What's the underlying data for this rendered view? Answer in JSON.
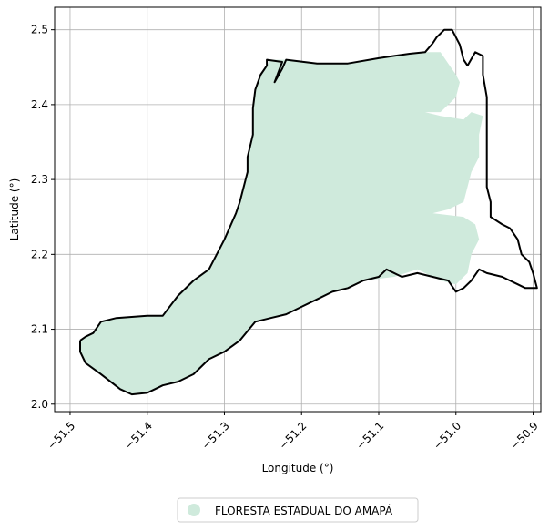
{
  "map": {
    "xlabel": "Longitude (°)",
    "ylabel": "Latitude (°)",
    "xlim": [
      -51.52,
      -50.89
    ],
    "ylim": [
      1.99,
      2.53
    ],
    "grid": true,
    "x_ticks": [
      {
        "value": -51.5,
        "label": "−51.5"
      },
      {
        "value": -51.4,
        "label": "−51.4"
      },
      {
        "value": -51.3,
        "label": "−51.3"
      },
      {
        "value": -51.2,
        "label": "−51.2"
      },
      {
        "value": -51.1,
        "label": "−51.1"
      },
      {
        "value": -51.0,
        "label": "−51.0"
      },
      {
        "value": -50.9,
        "label": "−50.9"
      }
    ],
    "y_ticks": [
      {
        "value": 2.0,
        "label": "2.0"
      },
      {
        "value": 2.1,
        "label": "2.1"
      },
      {
        "value": 2.2,
        "label": "2.2"
      },
      {
        "value": 2.3,
        "label": "2.3"
      },
      {
        "value": 2.4,
        "label": "2.4"
      },
      {
        "value": 2.5,
        "label": "2.5"
      }
    ],
    "fill_color": "#cfeadc",
    "outline_color": "#000000",
    "legend": {
      "placement": "bottom-center",
      "entries": [
        {
          "label": "FLORESTA ESTADUAL DO AMAPÁ",
          "color": "#cfeadc"
        }
      ]
    },
    "region_fill_lonlat": [
      [
        -51.487,
        2.085
      ],
      [
        -51.48,
        2.09
      ],
      [
        -51.47,
        2.095
      ],
      [
        -51.46,
        2.11
      ],
      [
        -51.44,
        2.115
      ],
      [
        -51.4,
        2.118
      ],
      [
        -51.38,
        2.118
      ],
      [
        -51.36,
        2.145
      ],
      [
        -51.34,
        2.165
      ],
      [
        -51.32,
        2.18
      ],
      [
        -51.3,
        2.22
      ],
      [
        -51.285,
        2.255
      ],
      [
        -51.28,
        2.27
      ],
      [
        -51.27,
        2.31
      ],
      [
        -51.27,
        2.33
      ],
      [
        -51.263,
        2.36
      ],
      [
        -51.263,
        2.395
      ],
      [
        -51.26,
        2.42
      ],
      [
        -51.253,
        2.44
      ],
      [
        -51.24,
        2.46
      ],
      [
        -51.22,
        2.46
      ],
      [
        -51.18,
        2.455
      ],
      [
        -51.14,
        2.455
      ],
      [
        -51.1,
        2.462
      ],
      [
        -51.08,
        2.465
      ],
      [
        -51.06,
        2.468
      ],
      [
        -51.04,
        2.47
      ],
      [
        -51.02,
        2.47
      ],
      [
        -51.01,
        2.455
      ],
      [
        -51.0,
        2.44
      ],
      [
        -50.995,
        2.43
      ],
      [
        -51.0,
        2.41
      ],
      [
        -51.02,
        2.39
      ],
      [
        -51.04,
        2.39
      ],
      [
        -51.02,
        2.385
      ],
      [
        -50.99,
        2.38
      ],
      [
        -50.98,
        2.39
      ],
      [
        -50.965,
        2.385
      ],
      [
        -50.97,
        2.36
      ],
      [
        -50.97,
        2.33
      ],
      [
        -50.98,
        2.31
      ],
      [
        -50.985,
        2.29
      ],
      [
        -50.99,
        2.27
      ],
      [
        -51.01,
        2.26
      ],
      [
        -51.03,
        2.255
      ],
      [
        -50.99,
        2.25
      ],
      [
        -50.975,
        2.24
      ],
      [
        -50.97,
        2.22
      ],
      [
        -50.98,
        2.2
      ],
      [
        -50.985,
        2.175
      ],
      [
        -51.0,
        2.16
      ],
      [
        -51.02,
        2.165
      ],
      [
        -51.05,
        2.18
      ],
      [
        -51.08,
        2.17
      ],
      [
        -51.12,
        2.165
      ],
      [
        -51.14,
        2.155
      ],
      [
        -51.16,
        2.15
      ],
      [
        -51.18,
        2.14
      ],
      [
        -51.2,
        2.13
      ],
      [
        -51.22,
        2.12
      ],
      [
        -51.24,
        2.115
      ],
      [
        -51.26,
        2.11
      ],
      [
        -51.28,
        2.085
      ],
      [
        -51.3,
        2.07
      ],
      [
        -51.32,
        2.06
      ],
      [
        -51.34,
        2.04
      ],
      [
        -51.36,
        2.03
      ],
      [
        -51.38,
        2.025
      ],
      [
        -51.39,
        2.02
      ],
      [
        -51.4,
        2.015
      ],
      [
        -51.42,
        2.013
      ],
      [
        -51.435,
        2.02
      ],
      [
        -51.46,
        2.04
      ],
      [
        -51.48,
        2.055
      ],
      [
        -51.487,
        2.07
      ]
    ],
    "region_outline_lonlat": [
      [
        -51.487,
        2.085
      ],
      [
        -51.48,
        2.09
      ],
      [
        -51.47,
        2.095
      ],
      [
        -51.46,
        2.11
      ],
      [
        -51.44,
        2.115
      ],
      [
        -51.4,
        2.118
      ],
      [
        -51.38,
        2.118
      ],
      [
        -51.36,
        2.145
      ],
      [
        -51.34,
        2.165
      ],
      [
        -51.32,
        2.18
      ],
      [
        -51.3,
        2.22
      ],
      [
        -51.285,
        2.255
      ],
      [
        -51.28,
        2.27
      ],
      [
        -51.27,
        2.31
      ],
      [
        -51.27,
        2.33
      ],
      [
        -51.263,
        2.36
      ],
      [
        -51.263,
        2.395
      ],
      [
        -51.26,
        2.42
      ],
      [
        -51.253,
        2.44
      ],
      [
        -51.245,
        2.452
      ],
      [
        -51.245,
        2.46
      ],
      [
        -51.225,
        2.457
      ],
      [
        -51.235,
        2.43
      ],
      [
        -51.225,
        2.448
      ],
      [
        -51.22,
        2.46
      ],
      [
        -51.18,
        2.455
      ],
      [
        -51.14,
        2.455
      ],
      [
        -51.1,
        2.462
      ],
      [
        -51.08,
        2.465
      ],
      [
        -51.06,
        2.468
      ],
      [
        -51.04,
        2.47
      ],
      [
        -51.03,
        2.482
      ],
      [
        -51.025,
        2.49
      ],
      [
        -51.015,
        2.5
      ],
      [
        -51.005,
        2.5
      ],
      [
        -50.995,
        2.48
      ],
      [
        -50.99,
        2.46
      ],
      [
        -50.985,
        2.452
      ],
      [
        -50.975,
        2.47
      ],
      [
        -50.965,
        2.465
      ],
      [
        -50.965,
        2.44
      ],
      [
        -50.96,
        2.41
      ],
      [
        -50.96,
        2.38
      ],
      [
        -50.96,
        2.36
      ],
      [
        -50.96,
        2.33
      ],
      [
        -50.96,
        2.29
      ],
      [
        -50.955,
        2.27
      ],
      [
        -50.955,
        2.25
      ],
      [
        -50.94,
        2.24
      ],
      [
        -50.93,
        2.235
      ],
      [
        -50.92,
        2.22
      ],
      [
        -50.915,
        2.2
      ],
      [
        -50.905,
        2.19
      ],
      [
        -50.9,
        2.175
      ],
      [
        -50.895,
        2.155
      ],
      [
        -50.91,
        2.155
      ],
      [
        -50.92,
        2.16
      ],
      [
        -50.93,
        2.165
      ],
      [
        -50.94,
        2.17
      ],
      [
        -50.96,
        2.175
      ],
      [
        -50.97,
        2.18
      ],
      [
        -50.98,
        2.165
      ],
      [
        -50.99,
        2.155
      ],
      [
        -51.0,
        2.15
      ],
      [
        -51.01,
        2.165
      ],
      [
        -51.03,
        2.17
      ],
      [
        -51.05,
        2.175
      ],
      [
        -51.07,
        2.17
      ],
      [
        -51.09,
        2.18
      ],
      [
        -51.1,
        2.17
      ],
      [
        -51.12,
        2.165
      ],
      [
        -51.14,
        2.155
      ],
      [
        -51.16,
        2.15
      ],
      [
        -51.18,
        2.14
      ],
      [
        -51.2,
        2.13
      ],
      [
        -51.22,
        2.12
      ],
      [
        -51.24,
        2.115
      ],
      [
        -51.26,
        2.11
      ],
      [
        -51.28,
        2.085
      ],
      [
        -51.3,
        2.07
      ],
      [
        -51.32,
        2.06
      ],
      [
        -51.34,
        2.04
      ],
      [
        -51.36,
        2.03
      ],
      [
        -51.38,
        2.025
      ],
      [
        -51.39,
        2.02
      ],
      [
        -51.4,
        2.015
      ],
      [
        -51.42,
        2.013
      ],
      [
        -51.435,
        2.02
      ],
      [
        -51.46,
        2.04
      ],
      [
        -51.48,
        2.055
      ],
      [
        -51.487,
        2.07
      ],
      [
        -51.487,
        2.085
      ]
    ]
  }
}
